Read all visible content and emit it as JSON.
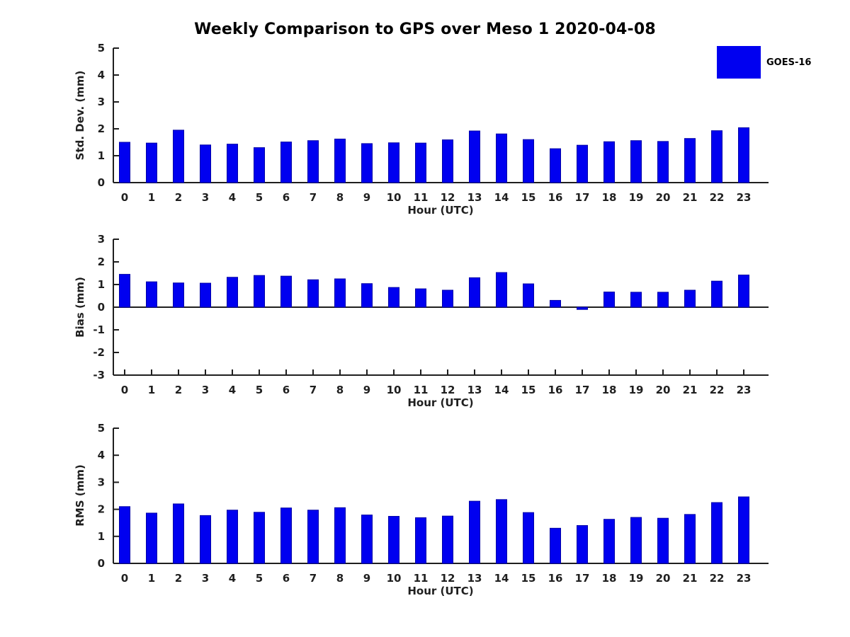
{
  "title": "Weekly Comparison to GPS over Meso 1 2020-04-08",
  "legend": {
    "position": "upper-right-outside",
    "items": [
      {
        "label": "GOES-16",
        "color": "#0000f0"
      }
    ]
  },
  "colors": {
    "bar_fill": "#0000f0",
    "bar_edge": "#0000a8",
    "axis": "#1f1f1f",
    "background": "#ffffff"
  },
  "chart_data": [
    {
      "type": "bar",
      "title": "",
      "ylabel": "Std. Dev. (mm)",
      "xlabel": "Hour (UTC)",
      "ylim": [
        0,
        5
      ],
      "yticks": [
        0,
        1,
        2,
        3,
        4,
        5
      ],
      "grid": false,
      "categories": [
        "0",
        "1",
        "2",
        "3",
        "4",
        "5",
        "6",
        "7",
        "8",
        "9",
        "10",
        "11",
        "12",
        "13",
        "14",
        "15",
        "16",
        "17",
        "18",
        "19",
        "20",
        "21",
        "22",
        "23"
      ],
      "series": [
        {
          "name": "GOES-16",
          "values": [
            1.5,
            1.47,
            1.95,
            1.4,
            1.43,
            1.3,
            1.51,
            1.56,
            1.62,
            1.45,
            1.48,
            1.47,
            1.59,
            1.92,
            1.81,
            1.6,
            1.26,
            1.39,
            1.52,
            1.56,
            1.53,
            1.64,
            1.93,
            2.04
          ]
        }
      ]
    },
    {
      "type": "bar",
      "title": "",
      "ylabel": "Bias (mm)",
      "xlabel": "Hour (UTC)",
      "ylim": [
        -3,
        3
      ],
      "yticks": [
        -3,
        -2,
        -1,
        0,
        1,
        2,
        3
      ],
      "grid": false,
      "categories": [
        "0",
        "1",
        "2",
        "3",
        "4",
        "5",
        "6",
        "7",
        "8",
        "9",
        "10",
        "11",
        "12",
        "13",
        "14",
        "15",
        "16",
        "17",
        "18",
        "19",
        "20",
        "21",
        "22",
        "23"
      ],
      "series": [
        {
          "name": "GOES-16",
          "values": [
            1.45,
            1.12,
            1.07,
            1.06,
            1.32,
            1.4,
            1.37,
            1.21,
            1.25,
            1.04,
            0.87,
            0.81,
            0.75,
            1.3,
            1.53,
            1.03,
            0.3,
            -0.1,
            0.67,
            0.66,
            0.66,
            0.75,
            1.15,
            1.42
          ]
        }
      ]
    },
    {
      "type": "bar",
      "title": "",
      "ylabel": "RMS (mm)",
      "xlabel": "Hour (UTC)",
      "ylim": [
        0,
        5
      ],
      "yticks": [
        0,
        1,
        2,
        3,
        4,
        5
      ],
      "grid": false,
      "categories": [
        "0",
        "1",
        "2",
        "3",
        "4",
        "5",
        "6",
        "7",
        "8",
        "9",
        "10",
        "11",
        "12",
        "13",
        "14",
        "15",
        "16",
        "17",
        "18",
        "19",
        "20",
        "21",
        "22",
        "23"
      ],
      "series": [
        {
          "name": "GOES-16",
          "values": [
            2.1,
            1.86,
            2.2,
            1.77,
            1.97,
            1.89,
            2.05,
            1.97,
            2.06,
            1.79,
            1.74,
            1.69,
            1.75,
            2.3,
            2.36,
            1.88,
            1.3,
            1.4,
            1.63,
            1.7,
            1.67,
            1.81,
            2.25,
            2.46
          ]
        }
      ]
    }
  ]
}
